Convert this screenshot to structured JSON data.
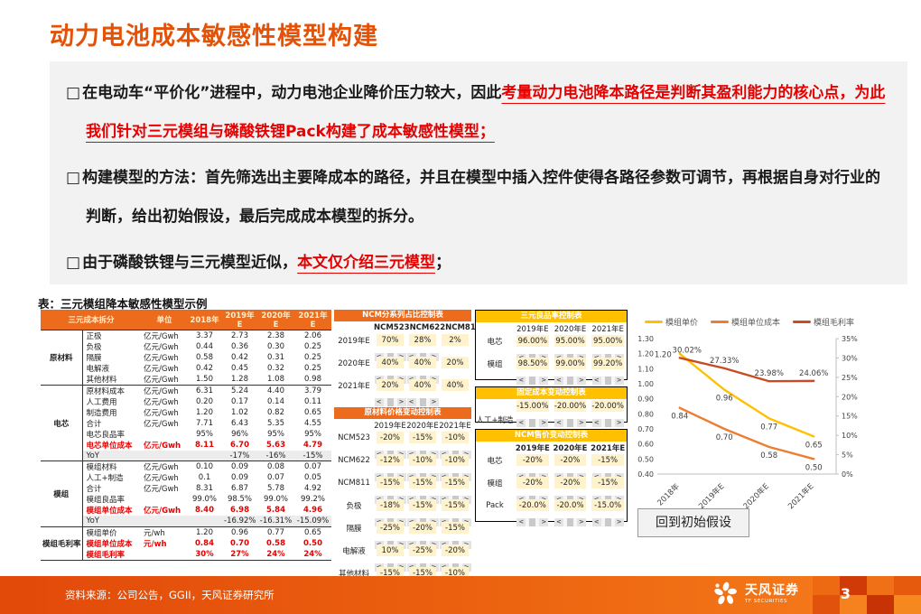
{
  "page": {
    "title": "动力电池成本敏感性模型构建",
    "table_caption": "表：三元模组降本敏感性模型示例",
    "reset_button_label": "回到初始假设"
  },
  "bullet_marker": "□",
  "bullets": [
    {
      "pre": "在电动车“平价化”进程中，动力电池企业降价压力较大，因此",
      "highlight": "考量动力电池降本路径是判断其盈利能力的核心点，为此我们针对三元模组与磷酸铁锂Pack构建了成本敏感性模型；",
      "post": ""
    },
    {
      "pre": "构建模型的方法：首先筛选出主要降成本的路径，并且在模型中插入控件使得各路径参数可调节，再根据自身对行业的判断，给出初始假设，最后完成成本模型的拆分。",
      "highlight": "",
      "post": ""
    },
    {
      "pre": "由于磷酸铁锂与三元模型近似，",
      "highlight": "本文仅介绍三元模型",
      "post": "；"
    }
  ],
  "cost_table": {
    "headers": [
      "三元成本拆分",
      "单位",
      "2018年",
      "2019年E",
      "2020年E",
      "2021年E"
    ],
    "groups": [
      {
        "label": "原材料",
        "rows": [
          {
            "name": "正极",
            "unit": "亿元/Gwh",
            "values": [
              "3.37",
              "2.73",
              "2.38",
              "2.06"
            ],
            "style": "normal"
          },
          {
            "name": "负极",
            "unit": "亿元/Gwh",
            "values": [
              "0.44",
              "0.36",
              "0.30",
              "0.25"
            ],
            "style": "normal"
          },
          {
            "name": "隔膜",
            "unit": "亿元/Gwh",
            "values": [
              "0.58",
              "0.42",
              "0.31",
              "0.25"
            ],
            "style": "normal"
          },
          {
            "name": "电解液",
            "unit": "亿元/Gwh",
            "values": [
              "0.42",
              "0.45",
              "0.32",
              "0.25"
            ],
            "style": "normal"
          },
          {
            "name": "其他材料",
            "unit": "亿元/Gwh",
            "values": [
              "1.50",
              "1.28",
              "1.08",
              "0.98"
            ],
            "style": "normal"
          }
        ]
      },
      {
        "label": "电芯",
        "rows": [
          {
            "name": "原材料成本",
            "unit": "亿元/Gwh",
            "values": [
              "6.31",
              "5.24",
              "4.40",
              "3.79"
            ],
            "style": "normal"
          },
          {
            "name": "人工费用",
            "unit": "亿元/Gwh",
            "values": [
              "0.20",
              "0.17",
              "0.14",
              "0.11"
            ],
            "style": "normal"
          },
          {
            "name": "制造费用",
            "unit": "亿元/Gwh",
            "values": [
              "1.20",
              "1.02",
              "0.82",
              "0.65"
            ],
            "style": "normal"
          },
          {
            "name": "合计",
            "unit": "亿元/Gwh",
            "values": [
              "7.71",
              "6.43",
              "5.35",
              "4.55"
            ],
            "style": "normal"
          },
          {
            "name": "电芯良品率",
            "unit": "",
            "values": [
              "95%",
              "96%",
              "95%",
              "95%"
            ],
            "style": "normal"
          },
          {
            "name": "电芯单位成本",
            "unit": "亿元/Gwh",
            "values": [
              "8.11",
              "6.70",
              "5.63",
              "4.79"
            ],
            "style": "red"
          },
          {
            "name": "YoY",
            "unit": "",
            "values": [
              "",
              "-17%",
              "-16%",
              "-15%"
            ],
            "style": "yoy"
          }
        ]
      },
      {
        "label": "模组",
        "rows": [
          {
            "name": "模组材料",
            "unit": "亿元/Gwh",
            "values": [
              "0.10",
              "0.09",
              "0.08",
              "0.07"
            ],
            "style": "normal"
          },
          {
            "name": "人工+制造",
            "unit": "亿元/Gwh",
            "values": [
              "0.1",
              "0.09",
              "0.07",
              "0.05"
            ],
            "style": "normal"
          },
          {
            "name": "合计",
            "unit": "亿元/Gwh",
            "values": [
              "8.31",
              "6.87",
              "5.78",
              "4.92"
            ],
            "style": "normal"
          },
          {
            "name": "模组良品率",
            "unit": "",
            "values": [
              "99.0%",
              "98.5%",
              "99.0%",
              "99.2%"
            ],
            "style": "normal"
          },
          {
            "name": "模组单位成本",
            "unit": "亿元/Gwh",
            "values": [
              "8.40",
              "6.98",
              "5.84",
              "4.96"
            ],
            "style": "red"
          },
          {
            "name": "YoY",
            "unit": "",
            "values": [
              "",
              "-16.92%",
              "-16.31%",
              "-15.09%"
            ],
            "style": "yoy"
          }
        ]
      },
      {
        "label": "模组毛利率",
        "rows": [
          {
            "name": "模组单价",
            "unit": "元/wh",
            "values": [
              "1.20",
              "0.96",
              "0.77",
              "0.65"
            ],
            "style": "normal"
          },
          {
            "name": "模组单位成本",
            "unit": "元/wh",
            "values": [
              "0.84",
              "0.70",
              "0.58",
              "0.50"
            ],
            "style": "red"
          },
          {
            "name": "模组毛利率",
            "unit": "",
            "values": [
              "30%",
              "27%",
              "24%",
              "24%"
            ],
            "style": "red"
          }
        ]
      }
    ]
  },
  "spinner_arrows": {
    "left": "<",
    "right": ">"
  },
  "control_tables": {
    "left": [
      {
        "title": "NCM分系列占比控制表",
        "header_color": "orange",
        "bordered": false,
        "columns_bold": true,
        "columns": [
          "NCM523",
          "NCM622",
          "NCM811"
        ],
        "rows": [
          {
            "label": "2019年E",
            "values": [
              "70%",
              "28%",
              "2%"
            ],
            "spinners": [
              true,
              true,
              false
            ]
          },
          {
            "label": "2020年E",
            "values": [
              "40%",
              "40%",
              "20%"
            ],
            "spinners": [
              true,
              true,
              false
            ]
          },
          {
            "label": "2021年E",
            "values": [
              "20%",
              "40%",
              "40%"
            ],
            "spinners": [
              true,
              true,
              false
            ]
          }
        ]
      },
      {
        "title": "原材料价格变动控制表",
        "header_color": "orange",
        "bordered": false,
        "columns_bold": false,
        "columns": [
          "2019年E",
          "2020年E",
          "2021年E"
        ],
        "rows": [
          {
            "label": "NCM523",
            "values": [
              "-20%",
              "-15%",
              "-10%"
            ],
            "spinners": [
              true,
              true,
              true
            ]
          },
          {
            "label": "NCM622",
            "values": [
              "-12%",
              "-10%",
              "-10%"
            ],
            "spinners": [
              true,
              true,
              true
            ]
          },
          {
            "label": "NCM811",
            "values": [
              "-15%",
              "-15%",
              "-15%"
            ],
            "spinners": [
              true,
              true,
              true
            ]
          },
          {
            "label": "负极",
            "values": [
              "-18%",
              "-15%",
              "-15%"
            ],
            "spinners": [
              true,
              true,
              true
            ]
          },
          {
            "label": "隔膜",
            "values": [
              "-25%",
              "-20%",
              "-15%"
            ],
            "spinners": [
              true,
              true,
              true
            ]
          },
          {
            "label": "电解液",
            "values": [
              "10%",
              "-25%",
              "-20%"
            ],
            "spinners": [
              true,
              true,
              true
            ]
          },
          {
            "label": "其他材料",
            "values": [
              "-15%",
              "-15%",
              "-10%"
            ],
            "spinners": [
              true,
              true,
              true
            ]
          }
        ]
      }
    ],
    "right": [
      {
        "title": "三元良品率控制表",
        "header_color": "gold",
        "bordered": true,
        "columns_bold": false,
        "columns": [
          "2019年E",
          "2020年E",
          "2021年E"
        ],
        "rows": [
          {
            "label": "电芯",
            "values": [
              "96.00%",
              "95.00%",
              "95.00%"
            ],
            "spinners": [
              true,
              true,
              true
            ]
          },
          {
            "label": "模组",
            "values": [
              "98.50%",
              "99.00%",
              "99.20%"
            ],
            "spinners": [
              true,
              true,
              true
            ]
          }
        ]
      },
      {
        "title": "固定成本变动控制表",
        "header_color": "gold",
        "bordered": true,
        "columns_bold": false,
        "columns": [],
        "rows": [
          {
            "label": "人工+制造",
            "label_row": "spinner",
            "values": [
              "-15.00%",
              "-20.00%",
              "-20.00%"
            ],
            "spinners": [
              true,
              true,
              true
            ]
          }
        ]
      },
      {
        "title": "NCM售价变动控制表",
        "header_color": "gold",
        "bordered": true,
        "columns_bold": true,
        "columns": [
          "2019年E",
          "2020年E",
          "2021年E"
        ],
        "rows": [
          {
            "label": "电芯",
            "values": [
              "-20%",
              "-20%",
              "-15%"
            ],
            "spinners": [
              true,
              true,
              true
            ]
          },
          {
            "label": "模组",
            "values": [
              "-20%",
              "-20%",
              "-15%"
            ],
            "spinners": [
              true,
              true,
              true
            ]
          },
          {
            "label": "Pack",
            "values": [
              "-20.0%",
              "-20.0%",
              "-15.0%"
            ],
            "spinners": [
              true,
              true,
              true
            ]
          }
        ]
      }
    ]
  },
  "chart_data": {
    "type": "line",
    "categories": [
      "2018年",
      "2019年E",
      "2020年E",
      "2021年E"
    ],
    "series": [
      {
        "name": "模组单价",
        "axis": "left",
        "color": "#FFC000",
        "values": [
          1.2,
          0.96,
          0.77,
          0.65
        ],
        "labels": [
          "1.20",
          "0.96",
          "0.77",
          "0.65"
        ]
      },
      {
        "name": "模组单位成本",
        "axis": "left",
        "color": "#ED7D31",
        "values": [
          0.84,
          0.7,
          0.58,
          0.5
        ],
        "labels": [
          "0.84",
          "0.70",
          "0.58",
          "0.50"
        ]
      },
      {
        "name": "模组毛利率",
        "axis": "right",
        "color": "#C84B22",
        "values": [
          30.02,
          27.33,
          23.98,
          24.06
        ],
        "labels": [
          "30.02%",
          "27.33%",
          "23.98%",
          "24.06%"
        ]
      }
    ],
    "left_axis": {
      "min": 0.4,
      "max": 1.3,
      "step": 0.1
    },
    "right_axis": {
      "min": 0,
      "max": 35,
      "step": 5,
      "suffix": "%"
    },
    "legend_position": "top",
    "grid": false
  },
  "footer": {
    "source": "资料来源：公司公告，GGII，天风证券研究所",
    "brand": "天风证券",
    "brand_sub": "TF SECURITIES",
    "page_number": "3"
  },
  "colors": {
    "accent_orange": "#E35206",
    "table_header_orange": "#EC6B1D",
    "control_gold": "#FFC000",
    "cell_yellow": "#FFF3CE",
    "highlight_red": "#E60000",
    "footer_gradient_left": "#E2490A",
    "footer_gradient_right": "#F67E1B"
  }
}
